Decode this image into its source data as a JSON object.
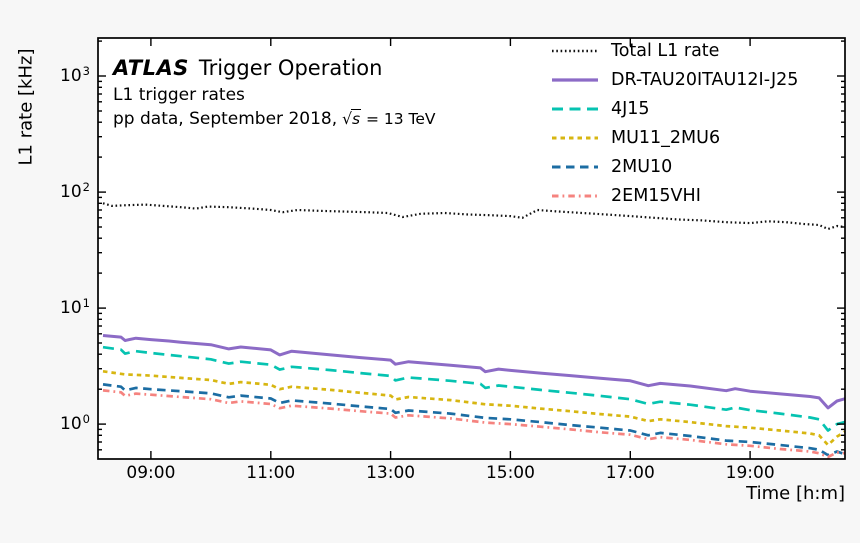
{
  "figure": {
    "background": "#f7f7f7",
    "plot_background": "#ffffff",
    "border_color": "#000000"
  },
  "annotations": {
    "experiment": "ATLAS",
    "title": "Trigger Operation",
    "line2": "L1 trigger rates",
    "line3_prefix": "pp data, September 2018,",
    "sqrt_symbol": "√",
    "sqrt_var": "s",
    "line3_suffix": " = 13 TeV"
  },
  "chart_data": {
    "type": "line",
    "title": "ATLAS Trigger Operation — L1 trigger rates, pp data, September 2018, sqrt(s)=13 TeV",
    "xlabel": "Time [h:m]",
    "ylabel": "L1 rate [kHz]",
    "grid": false,
    "legend_position": "top-right",
    "x_axis": {
      "units": "h:m",
      "lim": [
        8.117,
        20.583
      ],
      "major_ticks": [
        9,
        11,
        13,
        15,
        17,
        19
      ],
      "major_labels": [
        "09:00",
        "11:00",
        "13:00",
        "15:00",
        "17:00",
        "19:00"
      ]
    },
    "y_axis": {
      "scale": "log",
      "units": "kHz",
      "lim": [
        0.5,
        2128
      ],
      "major_tick_exponents": [
        0,
        1,
        2,
        3
      ],
      "mantissa": "10"
    },
    "series": [
      {
        "name": "Total L1 rate",
        "color": "#111111",
        "dash": "1.6 2.7",
        "width": 2.2,
        "points": [
          [
            8.2,
            80
          ],
          [
            8.35,
            76
          ],
          [
            8.6,
            77
          ],
          [
            8.9,
            78
          ],
          [
            9.2,
            76
          ],
          [
            9.5,
            74
          ],
          [
            9.75,
            72
          ],
          [
            9.95,
            75
          ],
          [
            10.3,
            74
          ],
          [
            10.7,
            72
          ],
          [
            11.0,
            70
          ],
          [
            11.2,
            67
          ],
          [
            11.45,
            70
          ],
          [
            11.8,
            69
          ],
          [
            12.2,
            68
          ],
          [
            12.6,
            67
          ],
          [
            12.95,
            66
          ],
          [
            13.2,
            61
          ],
          [
            13.5,
            65
          ],
          [
            13.9,
            66
          ],
          [
            14.3,
            64
          ],
          [
            14.7,
            63
          ],
          [
            15.0,
            62
          ],
          [
            15.2,
            60
          ],
          [
            15.45,
            70
          ],
          [
            15.8,
            68
          ],
          [
            16.2,
            66
          ],
          [
            16.6,
            64
          ],
          [
            17.0,
            62
          ],
          [
            17.4,
            60
          ],
          [
            17.8,
            58
          ],
          [
            18.2,
            57
          ],
          [
            18.6,
            55
          ],
          [
            19.0,
            54
          ],
          [
            19.3,
            56
          ],
          [
            19.6,
            55
          ],
          [
            19.9,
            53
          ],
          [
            20.15,
            52
          ],
          [
            20.3,
            48
          ],
          [
            20.45,
            51
          ],
          [
            20.58,
            50
          ]
        ]
      },
      {
        "name": "DR-TAU20ITAU12I-J25",
        "color": "#8c6bc6",
        "dash": "",
        "width": 3,
        "points": [
          [
            8.2,
            5.8
          ],
          [
            8.5,
            5.62
          ],
          [
            8.57,
            5.25
          ],
          [
            8.75,
            5.5
          ],
          [
            9.0,
            5.35
          ],
          [
            9.3,
            5.2
          ],
          [
            9.5,
            5.08
          ],
          [
            10.0,
            4.83
          ],
          [
            10.3,
            4.45
          ],
          [
            10.5,
            4.62
          ],
          [
            11.0,
            4.36
          ],
          [
            11.15,
            3.95
          ],
          [
            11.35,
            4.25
          ],
          [
            12.0,
            3.95
          ],
          [
            12.5,
            3.74
          ],
          [
            13.0,
            3.56
          ],
          [
            13.08,
            3.28
          ],
          [
            13.3,
            3.45
          ],
          [
            14.0,
            3.21
          ],
          [
            14.5,
            3.05
          ],
          [
            14.58,
            2.83
          ],
          [
            14.8,
            2.98
          ],
          [
            15.0,
            2.9
          ],
          [
            15.5,
            2.75
          ],
          [
            16.0,
            2.62
          ],
          [
            16.5,
            2.48
          ],
          [
            17.0,
            2.36
          ],
          [
            17.3,
            2.14
          ],
          [
            17.5,
            2.24
          ],
          [
            18.0,
            2.13
          ],
          [
            18.6,
            1.94
          ],
          [
            18.75,
            2.02
          ],
          [
            19.0,
            1.92
          ],
          [
            19.5,
            1.82
          ],
          [
            20.0,
            1.73
          ],
          [
            20.15,
            1.68
          ],
          [
            20.3,
            1.38
          ],
          [
            20.45,
            1.58
          ],
          [
            20.58,
            1.65
          ]
        ]
      },
      {
        "name": "4J15",
        "color": "#06c3b1",
        "dash": "11 6.5",
        "width": 2.7,
        "points": [
          [
            8.2,
            4.6
          ],
          [
            8.5,
            4.38
          ],
          [
            8.57,
            4.05
          ],
          [
            8.75,
            4.25
          ],
          [
            9.0,
            4.1
          ],
          [
            9.5,
            3.85
          ],
          [
            10.0,
            3.62
          ],
          [
            10.3,
            3.32
          ],
          [
            10.5,
            3.45
          ],
          [
            11.0,
            3.25
          ],
          [
            11.15,
            2.95
          ],
          [
            11.35,
            3.12
          ],
          [
            12.0,
            2.92
          ],
          [
            12.5,
            2.75
          ],
          [
            13.0,
            2.6
          ],
          [
            13.08,
            2.38
          ],
          [
            13.3,
            2.52
          ],
          [
            14.0,
            2.36
          ],
          [
            14.5,
            2.22
          ],
          [
            14.58,
            2.05
          ],
          [
            14.8,
            2.15
          ],
          [
            15.0,
            2.1
          ],
          [
            15.5,
            1.97
          ],
          [
            16.0,
            1.86
          ],
          [
            16.5,
            1.75
          ],
          [
            17.0,
            1.64
          ],
          [
            17.3,
            1.49
          ],
          [
            17.5,
            1.56
          ],
          [
            18.0,
            1.47
          ],
          [
            18.6,
            1.33
          ],
          [
            18.75,
            1.39
          ],
          [
            19.0,
            1.32
          ],
          [
            19.5,
            1.23
          ],
          [
            20.0,
            1.14
          ],
          [
            20.15,
            1.1
          ],
          [
            20.3,
            0.88
          ],
          [
            20.45,
            1.0
          ],
          [
            20.58,
            1.04
          ]
        ]
      },
      {
        "name": "MU11_2MU6",
        "color": "#d7b611",
        "dash": "4.5 4",
        "width": 2.7,
        "points": [
          [
            8.2,
            2.85
          ],
          [
            8.57,
            2.68
          ],
          [
            9.0,
            2.62
          ],
          [
            9.5,
            2.5
          ],
          [
            10.0,
            2.4
          ],
          [
            10.3,
            2.22
          ],
          [
            10.5,
            2.3
          ],
          [
            11.0,
            2.18
          ],
          [
            11.15,
            2.0
          ],
          [
            11.35,
            2.1
          ],
          [
            12.0,
            1.97
          ],
          [
            12.5,
            1.86
          ],
          [
            13.0,
            1.76
          ],
          [
            13.08,
            1.63
          ],
          [
            13.3,
            1.71
          ],
          [
            14.0,
            1.61
          ],
          [
            14.58,
            1.48
          ],
          [
            15.0,
            1.44
          ],
          [
            15.5,
            1.36
          ],
          [
            16.0,
            1.29
          ],
          [
            16.5,
            1.22
          ],
          [
            17.0,
            1.16
          ],
          [
            17.3,
            1.06
          ],
          [
            17.5,
            1.1
          ],
          [
            18.0,
            1.04
          ],
          [
            18.6,
            0.96
          ],
          [
            19.0,
            0.93
          ],
          [
            19.5,
            0.88
          ],
          [
            20.0,
            0.83
          ],
          [
            20.15,
            0.8
          ],
          [
            20.3,
            0.66
          ],
          [
            20.45,
            0.78
          ],
          [
            20.58,
            0.86
          ]
        ]
      },
      {
        "name": "2MU10",
        "color": "#1c6da3",
        "dash": "8.5 5.5",
        "width": 2.7,
        "points": [
          [
            8.2,
            2.2
          ],
          [
            8.5,
            2.1
          ],
          [
            8.57,
            1.95
          ],
          [
            8.75,
            2.05
          ],
          [
            9.0,
            2.0
          ],
          [
            9.5,
            1.92
          ],
          [
            10.0,
            1.84
          ],
          [
            10.3,
            1.7
          ],
          [
            10.5,
            1.76
          ],
          [
            11.0,
            1.66
          ],
          [
            11.15,
            1.52
          ],
          [
            11.35,
            1.6
          ],
          [
            12.0,
            1.5
          ],
          [
            12.5,
            1.42
          ],
          [
            13.0,
            1.35
          ],
          [
            13.08,
            1.25
          ],
          [
            13.3,
            1.31
          ],
          [
            14.0,
            1.23
          ],
          [
            14.58,
            1.13
          ],
          [
            15.0,
            1.1
          ],
          [
            15.5,
            1.04
          ],
          [
            16.0,
            0.98
          ],
          [
            16.5,
            0.93
          ],
          [
            17.0,
            0.88
          ],
          [
            17.3,
            0.8
          ],
          [
            17.5,
            0.84
          ],
          [
            18.0,
            0.79
          ],
          [
            18.6,
            0.72
          ],
          [
            19.0,
            0.7
          ],
          [
            19.5,
            0.66
          ],
          [
            20.0,
            0.62
          ],
          [
            20.15,
            0.6
          ],
          [
            20.3,
            0.54
          ],
          [
            20.45,
            0.58
          ],
          [
            20.58,
            0.55
          ]
        ]
      },
      {
        "name": "2EM15VHI",
        "color": "#f5837f",
        "dash": "6.5 4 1.8 4",
        "width": 2.7,
        "points": [
          [
            8.2,
            1.95
          ],
          [
            8.5,
            1.88
          ],
          [
            8.57,
            1.75
          ],
          [
            8.75,
            1.83
          ],
          [
            9.0,
            1.79
          ],
          [
            9.5,
            1.71
          ],
          [
            10.0,
            1.64
          ],
          [
            10.3,
            1.52
          ],
          [
            10.5,
            1.57
          ],
          [
            11.0,
            1.49
          ],
          [
            11.15,
            1.37
          ],
          [
            11.35,
            1.44
          ],
          [
            12.0,
            1.36
          ],
          [
            12.5,
            1.29
          ],
          [
            13.0,
            1.23
          ],
          [
            13.08,
            1.14
          ],
          [
            13.3,
            1.19
          ],
          [
            14.0,
            1.12
          ],
          [
            14.58,
            1.03
          ],
          [
            15.0,
            1.0
          ],
          [
            15.5,
            0.95
          ],
          [
            16.0,
            0.9
          ],
          [
            16.5,
            0.85
          ],
          [
            17.0,
            0.81
          ],
          [
            17.3,
            0.74
          ],
          [
            17.5,
            0.77
          ],
          [
            18.0,
            0.73
          ],
          [
            18.6,
            0.67
          ],
          [
            19.0,
            0.65
          ],
          [
            19.5,
            0.61
          ],
          [
            20.0,
            0.58
          ],
          [
            20.15,
            0.56
          ],
          [
            20.3,
            0.52
          ],
          [
            20.45,
            0.57
          ],
          [
            20.58,
            0.56
          ]
        ]
      }
    ]
  }
}
